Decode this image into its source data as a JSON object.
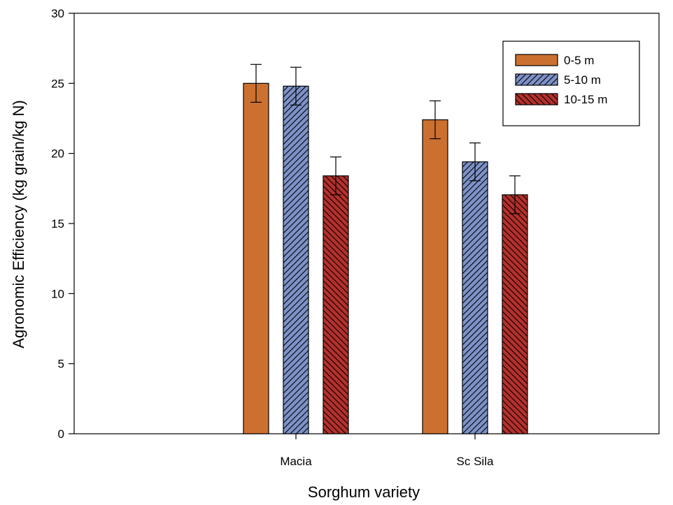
{
  "chart_data": {
    "type": "bar",
    "title": "",
    "xlabel": "Sorghum variety",
    "ylabel": "Agronomic Efficiency (kg grain/kg N)",
    "categories": [
      "Macia",
      "Sc Sila"
    ],
    "ylim": [
      0,
      30
    ],
    "yticks": [
      "0",
      "5",
      "10",
      "15",
      "20",
      "25",
      "30"
    ],
    "series": [
      {
        "name": "0-5 m",
        "values": [
          25.0,
          22.4
        ],
        "errors": [
          1.35,
          1.35
        ],
        "color": "#cc7030",
        "pattern": "solid"
      },
      {
        "name": "5-10 m",
        "values": [
          24.8,
          19.4
        ],
        "errors": [
          1.35,
          1.35
        ],
        "color": "#7d92c8",
        "pattern": "hatch"
      },
      {
        "name": "10-15 m",
        "values": [
          18.4,
          17.05
        ],
        "errors": [
          1.35,
          1.35
        ],
        "color": "#b5302c",
        "pattern": "hatch"
      }
    ],
    "legend": {
      "position": "top-right"
    },
    "grid": false
  }
}
